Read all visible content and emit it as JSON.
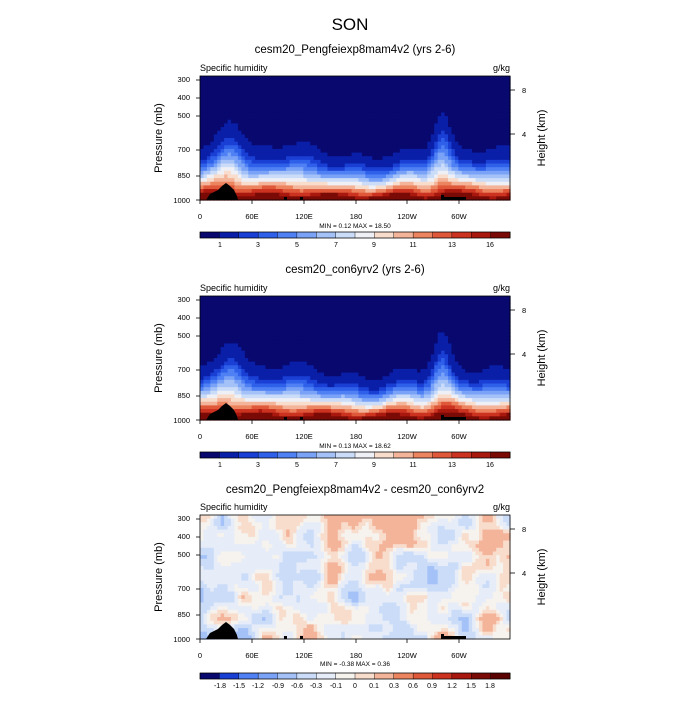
{
  "figure": {
    "title": "SON"
  },
  "chart_data": [
    {
      "type": "heatmap",
      "title": "cesm20_Pengfeiexp8mam4v2 (yrs 2-6)",
      "left_label": "Specific humidity",
      "right_label": "g/kg",
      "ylabel": "Pressure (mb)",
      "y2label": "Height (km)",
      "x_ticks": [
        "0",
        "60E",
        "120E",
        "180",
        "120W",
        "60W"
      ],
      "y_ticks": [
        "300",
        "400",
        "500",
        "700",
        "850",
        "1000"
      ],
      "y2_ticks": [
        "8",
        "4"
      ],
      "min": 0.12,
      "max": 18.5,
      "minmax_text": "MIN =   0.12  MAX =  18.50",
      "colorbar_labels": [
        "1",
        "3",
        "5",
        "7",
        "9",
        "11",
        "13",
        "16"
      ]
    },
    {
      "type": "heatmap",
      "title": "cesm20_con6yrv2 (yrs 2-6)",
      "left_label": "Specific humidity",
      "right_label": "g/kg",
      "ylabel": "Pressure (mb)",
      "y2label": "Height (km)",
      "x_ticks": [
        "0",
        "60E",
        "120E",
        "180",
        "120W",
        "60W"
      ],
      "y_ticks": [
        "300",
        "400",
        "500",
        "700",
        "850",
        "1000"
      ],
      "y2_ticks": [
        "8",
        "4"
      ],
      "min": 0.13,
      "max": 18.62,
      "minmax_text": "MIN =   0.13  MAX =  18.62",
      "colorbar_labels": [
        "1",
        "3",
        "5",
        "7",
        "9",
        "11",
        "13",
        "16"
      ]
    },
    {
      "type": "heatmap",
      "title": "cesm20_Pengfeiexp8mam4v2 - cesm20_con6yrv2",
      "left_label": "Specific humidity",
      "right_label": "g/kg",
      "ylabel": "Pressure (mb)",
      "y2label": "Height (km)",
      "x_ticks": [
        "0",
        "60E",
        "120E",
        "180",
        "120W",
        "60W"
      ],
      "y_ticks": [
        "300",
        "400",
        "500",
        "700",
        "850",
        "1000"
      ],
      "y2_ticks": [
        "8",
        "4"
      ],
      "min": -0.38,
      "max": 0.36,
      "minmax_text": "MIN =  -0.38  MAX =   0.36",
      "colorbar_labels": [
        "-1.8",
        "-1.5",
        "-1.2",
        "-0.9",
        "-0.6",
        "-0.3",
        "-0.1",
        "0",
        "0.1",
        "0.3",
        "0.6",
        "0.9",
        "1.2",
        "1.5",
        "1.8"
      ]
    }
  ],
  "colors": {
    "seq": [
      "#08086e",
      "#0a1fa8",
      "#1a3fd4",
      "#2f60ea",
      "#4f80f4",
      "#7aa2f6",
      "#a4c2f8",
      "#cadcf8",
      "#eef0f6",
      "#f8dccc",
      "#f4b49a",
      "#ec8460",
      "#e0583a",
      "#cc3220",
      "#a8180e",
      "#7a0a06"
    ],
    "div": [
      "#08086e",
      "#1a3fd4",
      "#4f80f4",
      "#7aa2f6",
      "#a4c2f8",
      "#cadcf8",
      "#e6ecf8",
      "#f6f2ee",
      "#f8dccc",
      "#f4b49a",
      "#ec8460",
      "#e0583a",
      "#cc3220",
      "#a8180e",
      "#7a0a06",
      "#5a0202"
    ]
  }
}
